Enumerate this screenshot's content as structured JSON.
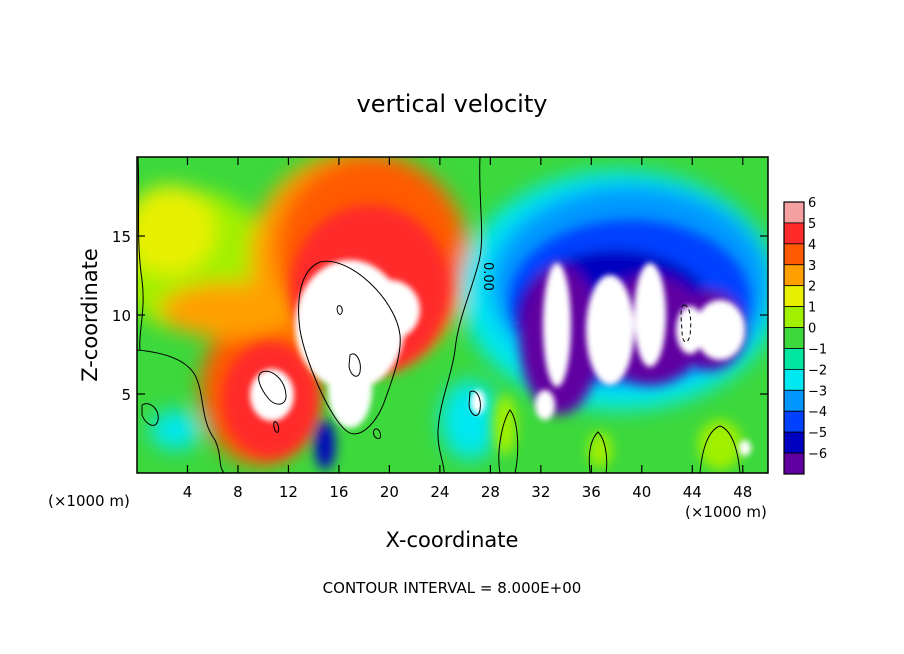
{
  "chart_data": {
    "type": "heatmap",
    "title": "vertical velocity",
    "xlabel": "X-coordinate",
    "ylabel": "Z-coordinate",
    "x_unit_left": "(×1000 m)",
    "x_unit_right": "(×1000 m)",
    "xlim": [
      0,
      50
    ],
    "ylim": [
      0,
      20
    ],
    "x_ticks": [
      4,
      8,
      12,
      16,
      20,
      24,
      28,
      32,
      36,
      40,
      44,
      48
    ],
    "y_ticks": [
      5,
      10,
      15
    ],
    "colorbar": {
      "min": -6,
      "max": 6,
      "levels": [
        {
          "value": 6,
          "label": "6",
          "color": "#f4a0a0"
        },
        {
          "value": 5,
          "label": "5",
          "color": "#ff2a2a"
        },
        {
          "value": 4,
          "label": "4",
          "color": "#ff5a00"
        },
        {
          "value": 3,
          "label": "3",
          "color": "#ffa000"
        },
        {
          "value": 2,
          "label": "2",
          "color": "#e8f000"
        },
        {
          "value": 1,
          "label": "1",
          "color": "#a0f000"
        },
        {
          "value": 0,
          "label": "0",
          "color": "#3cd83c"
        },
        {
          "value": -1,
          "label": "−1",
          "color": "#00e8a0"
        },
        {
          "value": -2,
          "label": "−2",
          "color": "#00e8f0"
        },
        {
          "value": -3,
          "label": "−3",
          "color": "#0096ff"
        },
        {
          "value": -4,
          "label": "−4",
          "color": "#0040ff"
        },
        {
          "value": -5,
          "label": "−5",
          "color": "#0000c0"
        },
        {
          "value": -6,
          "label": "−6",
          "color": "#6000a0"
        }
      ]
    },
    "contour_label": "0.00",
    "contour_interval_text": "CONTOUR INTERVAL = 8.000E+00",
    "grid": false,
    "legend_position": "right"
  }
}
